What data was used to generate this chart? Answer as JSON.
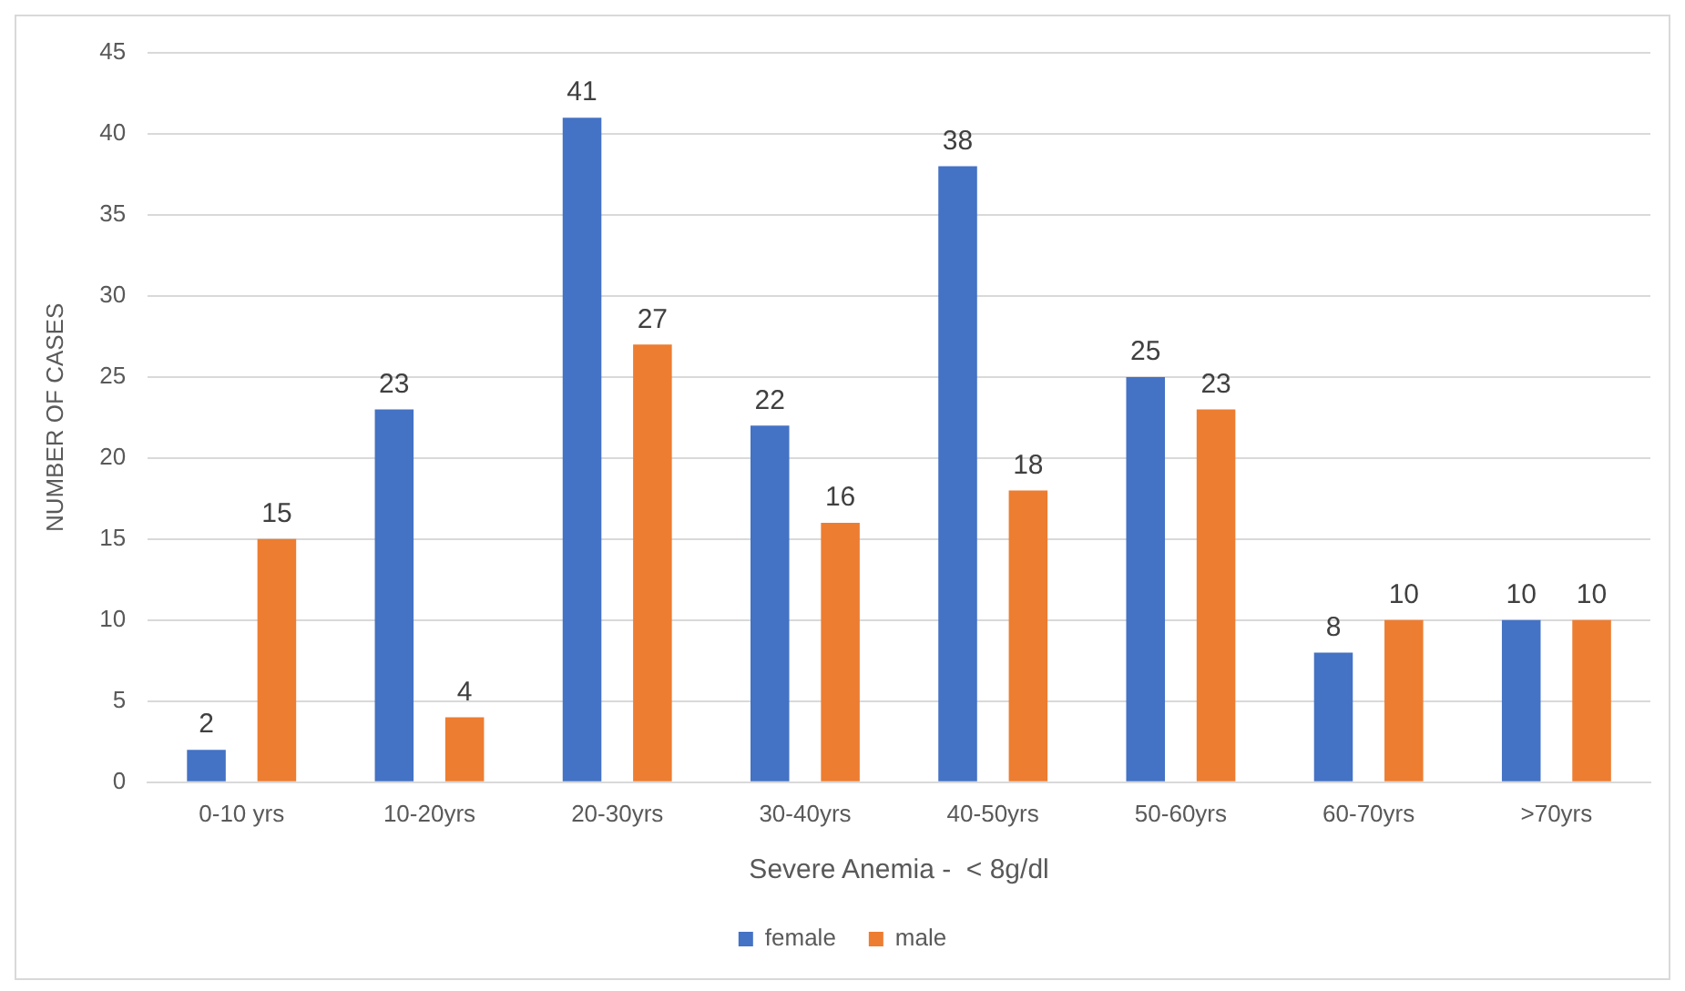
{
  "chart_data": {
    "type": "bar",
    "xlabel": "Severe Anemia -  < 8g/dl",
    "ylabel": "NUMBER OF CASES",
    "categories": [
      "0-10 yrs",
      "10-20yrs",
      "20-30yrs",
      "30-40yrs",
      "40-50yrs",
      "50-60yrs",
      "60-70yrs",
      ">70yrs"
    ],
    "series": [
      {
        "name": "female",
        "color": "#4472c4",
        "values": [
          2,
          23,
          41,
          22,
          38,
          25,
          8,
          10
        ]
      },
      {
        "name": "male",
        "color": "#ed7d31",
        "values": [
          15,
          4,
          27,
          16,
          18,
          23,
          10,
          10
        ]
      }
    ],
    "ylim": [
      0,
      45
    ],
    "yticks": [
      0,
      5,
      10,
      15,
      20,
      25,
      30,
      35,
      40,
      45
    ],
    "grid": "y",
    "legend": "bottom",
    "data_labels": true
  }
}
